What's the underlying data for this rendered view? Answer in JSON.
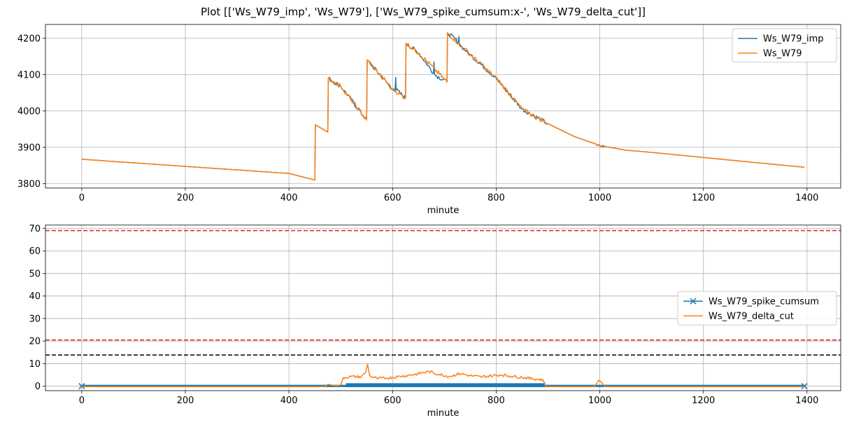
{
  "title": "Plot [['Ws_W79_imp', 'Ws_W79'], ['Ws_W79_spike_cumsum:x-', 'Ws_W79_delta_cut']]",
  "chart_data": [
    {
      "type": "line",
      "xlabel": "minute",
      "ylabel": "",
      "xlim": [
        -70,
        1465
      ],
      "ylim": [
        3788,
        4238
      ],
      "xticks": [
        0,
        200,
        400,
        600,
        800,
        1000,
        1200,
        1400
      ],
      "yticks": [
        3800,
        3900,
        4000,
        4100,
        4200
      ],
      "grid": true,
      "legend_position": "top-right",
      "series": [
        {
          "name": "Ws_W79_imp",
          "color": "#1f77b4",
          "x": [
            0,
            400,
            450,
            451,
            475,
            476,
            500,
            550,
            551,
            600,
            605,
            606,
            607,
            625,
            626,
            650,
            679,
            680,
            681,
            705,
            706,
            727,
            728,
            729,
            750,
            800,
            850,
            900,
            950,
            1000,
            1050,
            1100,
            1200,
            1300,
            1395
          ],
          "y": [
            3867,
            3828,
            3810,
            3962,
            3942,
            4090,
            4068,
            3975,
            4140,
            4060,
            4055,
            4092,
            4058,
            4035,
            4186,
            4160,
            4105,
            4135,
            4100,
            4080,
            4215,
            4190,
            4205,
            4182,
            4155,
            4090,
            4005,
            3965,
            3930,
            3905,
            3892,
            3886,
            3872,
            3858,
            3845
          ]
        },
        {
          "name": "Ws_W79",
          "color": "#ff7f0e",
          "x": [
            0,
            400,
            450,
            451,
            475,
            476,
            500,
            550,
            551,
            600,
            625,
            626,
            650,
            705,
            706,
            750,
            800,
            850,
            900,
            950,
            1000,
            1050,
            1100,
            1200,
            1300,
            1395
          ],
          "y": [
            3867,
            3828,
            3810,
            3962,
            3942,
            4090,
            4068,
            3975,
            4140,
            4060,
            4035,
            4186,
            4160,
            4080,
            4215,
            4155,
            4090,
            4005,
            3965,
            3930,
            3905,
            3892,
            3886,
            3872,
            3858,
            3845
          ]
        }
      ]
    },
    {
      "type": "line",
      "xlabel": "minute",
      "ylabel": "",
      "xlim": [
        -70,
        1465
      ],
      "ylim": [
        -2,
        71.5
      ],
      "xticks": [
        0,
        200,
        400,
        600,
        800,
        1000,
        1200,
        1400
      ],
      "yticks": [
        0,
        10,
        20,
        30,
        40,
        50,
        60,
        70
      ],
      "grid": true,
      "legend_position": "center-right",
      "hlines": [
        {
          "y": 69,
          "color": "#d62728",
          "style": "dashed"
        },
        {
          "y": 20.5,
          "color": "#d62728",
          "style": "dashed"
        },
        {
          "y": 13.8,
          "color": "#000000",
          "style": "dashed"
        }
      ],
      "series": [
        {
          "name": "Ws_W79_spike_cumsum",
          "color": "#1f77b4",
          "marker": "x",
          "band": {
            "x_start": 0,
            "x_end": 1395,
            "y_low": -0.4,
            "y_high": 0.6,
            "dense_x_start": 510,
            "dense_x_end": 895,
            "dense_y_high": 1.3
          }
        },
        {
          "name": "Ws_W79_delta_cut",
          "color": "#ff7f0e",
          "x": [
            0,
            470,
            475,
            490,
            500,
            505,
            520,
            540,
            548,
            552,
            556,
            570,
            590,
            610,
            630,
            650,
            670,
            690,
            710,
            730,
            750,
            770,
            790,
            810,
            830,
            850,
            870,
            890,
            895,
            990,
            998,
            1003,
            1010,
            1395
          ],
          "y": [
            -0.2,
            -0.2,
            0.8,
            0.2,
            0.5,
            3.8,
            4.3,
            4.1,
            6.2,
            9.7,
            4.5,
            3.4,
            3.6,
            4.2,
            4.8,
            5.5,
            6.5,
            5.2,
            4.3,
            5.6,
            4.6,
            4.1,
            4.6,
            5.0,
            4.4,
            3.9,
            3.3,
            2.9,
            -0.2,
            -0.2,
            2.6,
            1.8,
            -0.2,
            -0.2
          ]
        }
      ]
    }
  ]
}
